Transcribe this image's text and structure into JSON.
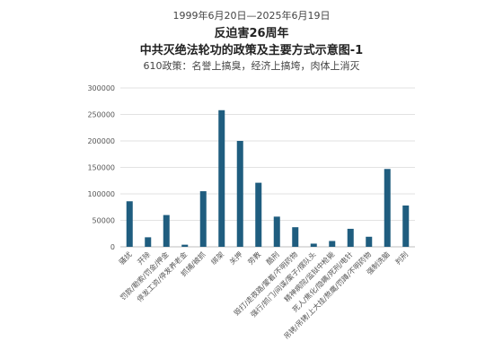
{
  "header": {
    "date_range": "1999年6月20日—2025年6月19日",
    "title_line1": "反迫害26周年",
    "title_line2": "中共灭绝法轮功的政策及主要方式示意图-1",
    "subtitle": "610政策：名誉上搞臭，经济上搞垮，肉体上消灭"
  },
  "chart_data": {
    "type": "bar",
    "title": "中共灭绝法轮功的政策及主要方式示意图-1",
    "subtitle": "610政策：名誉上搞臭，经济上搞垮，肉体上消灭",
    "categories": [
      "骚扰",
      "开除",
      "罚款/勒索/罚金/押金",
      "停发工资/停发养老金",
      "抓捕/被抓",
      "绑架",
      "关押",
      "劳教",
      "酷刑",
      "毁打/走夜路/蒙着/不明药物",
      "强行/抓门/间谍/案子/摆队头",
      "精神病院/监狱中枪毙",
      "死人/焦化/隐瞒/死刑/电针",
      "吊铐/吊铐/上大挂/熬鹰/罚蹲/不明药物",
      "强制洗脑",
      "判刑"
    ],
    "values": [
      86000,
      18000,
      60000,
      4000,
      105000,
      258000,
      200000,
      121000,
      57000,
      37000,
      6000,
      11000,
      34000,
      19000,
      147000,
      78000
    ],
    "ylim": [
      0,
      300000
    ],
    "yticks": [
      "0",
      "50000",
      "100000",
      "150000",
      "200000",
      "250000",
      "300000"
    ],
    "ytick_values": [
      0,
      50000,
      100000,
      150000,
      200000,
      250000,
      300000
    ],
    "grid": true,
    "bar_color": "#1f5d7f",
    "grid_color": "#e2e2e2"
  }
}
